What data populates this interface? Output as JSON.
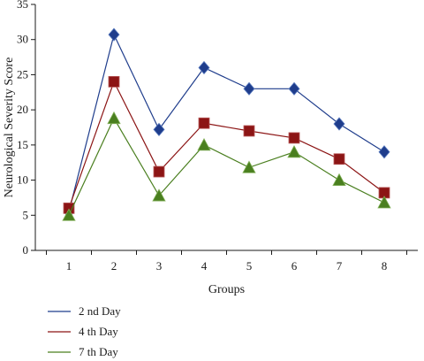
{
  "chart_data": {
    "type": "line",
    "xlabel": "Groups",
    "ylabel": "Neurological Severity Score",
    "x": [
      1,
      2,
      3,
      4,
      5,
      6,
      7,
      8
    ],
    "ylim": [
      0,
      35
    ],
    "yticks": [
      0,
      5,
      10,
      15,
      20,
      25,
      30,
      35
    ],
    "grid": false,
    "legend": "bottom-left",
    "series": [
      {
        "name": "2 nd Day",
        "color": "#1f3d8c",
        "marker": "diamond",
        "values": [
          5.5,
          30.7,
          17.2,
          26.0,
          23.0,
          23.0,
          18.0,
          14.0
        ]
      },
      {
        "name": "4 th Day",
        "color": "#8c1515",
        "marker": "square",
        "values": [
          6.0,
          24.0,
          11.2,
          18.1,
          17.0,
          16.0,
          13.0,
          8.2
        ]
      },
      {
        "name": "7 th Day",
        "color": "#4a7f1f",
        "marker": "triangle",
        "values": [
          5.0,
          18.8,
          7.8,
          15.0,
          11.8,
          14.0,
          10.0,
          6.8
        ]
      }
    ]
  }
}
